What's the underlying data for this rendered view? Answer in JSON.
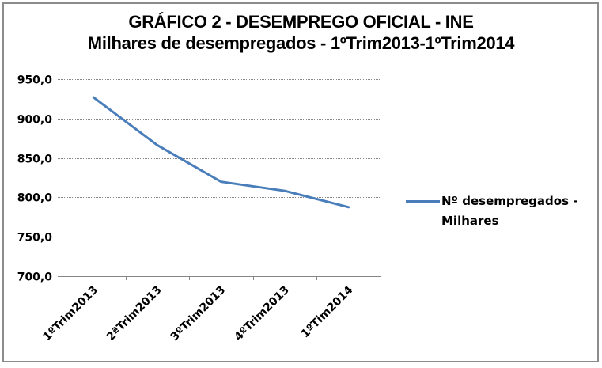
{
  "chart_data": {
    "type": "line",
    "title": "GRÁFICO 2 - DESEMPREGO OFICIAL - INE",
    "subtitle": "Milhares de desempregados - 1ºTrim2013-1ºTrim2014",
    "categories": [
      "1ºTrim2013",
      "2ªTrim2013",
      "3ºTrim2013",
      "4ºTrim2013",
      "1ºTim2014"
    ],
    "series": [
      {
        "name": "Nº desempregados - Milhares",
        "values": [
          926.8,
          866.3,
          819.8,
          808.2,
          787.6
        ],
        "color": "#4a7ebb"
      }
    ],
    "xlabel": "",
    "ylabel": "",
    "ylim": [
      700,
      950
    ],
    "yticks": [
      "950,0",
      "900,0",
      "850,0",
      "800,0",
      "750,0",
      "700,0"
    ],
    "grid": true,
    "legend_position": "right"
  },
  "title": {
    "line1": "GRÁFICO 2 - DESEMPREGO OFICIAL - INE",
    "line2": "Milhares de desempregados - 1ºTrim2013-1ºTrim2014"
  },
  "legend": {
    "line1": "Nº desempregados -",
    "line2": "Milhares"
  }
}
